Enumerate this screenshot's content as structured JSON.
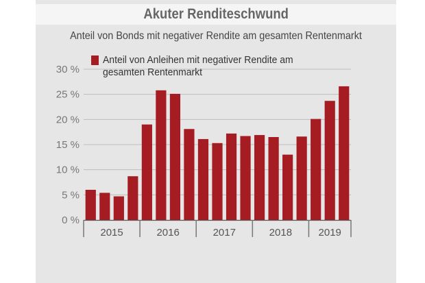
{
  "title": "Akuter Renditeschwund",
  "subtitle": "Anteil von Bonds mit negativer Rendite am gesamten Rentenmarkt",
  "legend": {
    "label": "Anteil von Anleihen mit negativer Rendite am gesamten Rentenmarkt"
  },
  "colors": {
    "bar": "#a51c22",
    "grid": "#bdbdbd",
    "panel": "#e6e6e6"
  },
  "chart_data": {
    "type": "bar",
    "title": "Akuter Renditeschwund",
    "subtitle": "Anteil von Bonds mit negativer Rendite am gesamten Rentenmarkt",
    "xlabel": "",
    "ylabel": "",
    "ylim": [
      0,
      30
    ],
    "yticks": [
      0,
      5,
      10,
      15,
      20,
      25,
      30
    ],
    "ytick_labels": [
      "0 %",
      "5 %",
      "10 %",
      "15 %",
      "20 %",
      "25 %",
      "30 %"
    ],
    "grid": true,
    "legend_position": "top-left",
    "year_groups": [
      {
        "label": "2015",
        "count": 4
      },
      {
        "label": "2016",
        "count": 4
      },
      {
        "label": "2017",
        "count": 4
      },
      {
        "label": "2018",
        "count": 4
      },
      {
        "label": "2019",
        "count": 3
      }
    ],
    "series": [
      {
        "name": "Anteil von Anleihen mit negativer Rendite am gesamten Rentenmarkt",
        "values": [
          6.0,
          5.4,
          4.7,
          8.7,
          19.0,
          25.8,
          25.1,
          18.1,
          16.1,
          15.3,
          17.2,
          16.7,
          16.9,
          16.5,
          13.0,
          16.6,
          20.1,
          23.7,
          26.6
        ]
      }
    ]
  }
}
